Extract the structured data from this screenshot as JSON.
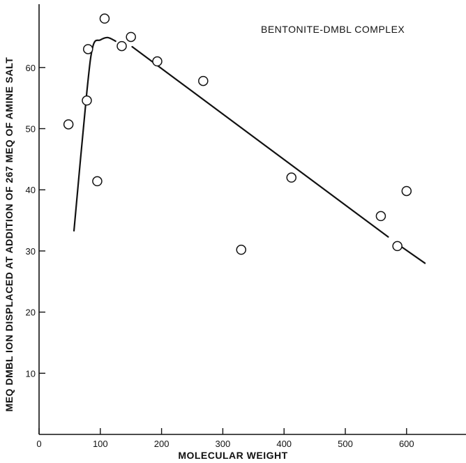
{
  "chart_data": {
    "type": "scatter",
    "title": "BENTONITE-DMBL COMPLEX",
    "xlabel": "MOLECULAR WEIGHT",
    "ylabel": "MEQ DMBL ION DISPLACED AT ADDITION OF 267 MEQ OF AMINE SALT",
    "xlim": [
      0,
      700
    ],
    "ylim": [
      0,
      70
    ],
    "xticks": [
      0,
      100,
      200,
      300,
      400,
      500,
      600
    ],
    "yticks": [
      10,
      20,
      30,
      40,
      50,
      60
    ],
    "grid": false,
    "points": [
      {
        "x": 48,
        "y": 50.7
      },
      {
        "x": 78,
        "y": 54.6
      },
      {
        "x": 80,
        "y": 63.0
      },
      {
        "x": 95,
        "y": 41.4
      },
      {
        "x": 107,
        "y": 68.0
      },
      {
        "x": 135,
        "y": 63.5
      },
      {
        "x": 150,
        "y": 65.0
      },
      {
        "x": 193,
        "y": 61.0
      },
      {
        "x": 268,
        "y": 57.8
      },
      {
        "x": 330,
        "y": 30.2
      },
      {
        "x": 412,
        "y": 42.0
      },
      {
        "x": 558,
        "y": 35.7
      },
      {
        "x": 585,
        "y": 30.8
      },
      {
        "x": 600,
        "y": 39.8
      }
    ],
    "trend_segments": [
      [
        [
          57,
          33.3
        ],
        [
          78,
          56.0
        ],
        [
          88,
          63.5
        ],
        [
          100,
          64.5
        ],
        [
          112,
          64.9
        ],
        [
          125,
          64.3
        ]
      ],
      [
        [
          152,
          63.4
        ],
        [
          570,
          32.3
        ]
      ],
      [
        [
          590,
          30.8
        ],
        [
          630,
          28.0
        ]
      ]
    ]
  }
}
